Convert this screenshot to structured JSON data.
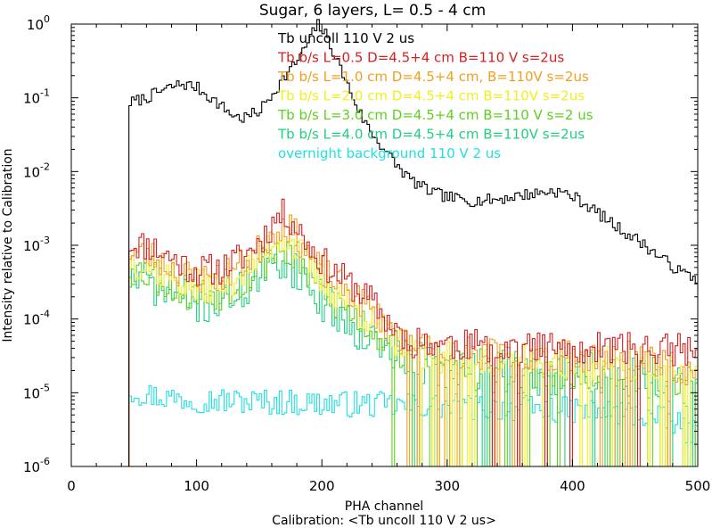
{
  "chart_data": {
    "type": "line",
    "title": "Sugar, 6 layers, L= 0.5 - 4 cm",
    "xlabel": "PHA channel",
    "ylabel": "Intensity relative to Calibration",
    "footer": "Calibration: <Tb uncoll 110 V 2 us>",
    "xlim": [
      0,
      500
    ],
    "ylim": [
      1e-06,
      1
    ],
    "yscale": "log",
    "x_ticks": [
      "0",
      "100",
      "200",
      "300",
      "400",
      "500"
    ],
    "y_ticks": [
      {
        "base": "10",
        "exp": "0",
        "value": 1
      },
      {
        "base": "10",
        "exp": "-1",
        "value": 0.1
      },
      {
        "base": "10",
        "exp": "-2",
        "value": 0.01
      },
      {
        "base": "10",
        "exp": "-3",
        "value": 0.001
      },
      {
        "base": "10",
        "exp": "-4",
        "value": 0.0001
      },
      {
        "base": "10",
        "exp": "-5",
        "value": 1e-05
      },
      {
        "base": "10",
        "exp": "-6",
        "value": 1e-06
      }
    ],
    "series": [
      {
        "name": "Tb uncoll 110 V 2 us",
        "color": "#000000",
        "kind": "peaks",
        "start": 46,
        "base": 1e-06,
        "noise": 0.08,
        "points": [
          [
            46,
            0.085
          ],
          [
            60,
            0.1
          ],
          [
            75,
            0.13
          ],
          [
            88,
            0.155
          ],
          [
            100,
            0.14
          ],
          [
            115,
            0.09
          ],
          [
            128,
            0.06
          ],
          [
            136,
            0.052
          ],
          [
            150,
            0.065
          ],
          [
            160,
            0.11
          ],
          [
            170,
            0.19
          ],
          [
            178,
            0.28
          ],
          [
            185,
            0.42
          ],
          [
            192,
            0.7
          ],
          [
            197,
            1.0
          ],
          [
            203,
            0.72
          ],
          [
            210,
            0.4
          ],
          [
            218,
            0.19
          ],
          [
            225,
            0.1
          ],
          [
            232,
            0.055
          ],
          [
            242,
            0.03
          ],
          [
            252,
            0.018
          ],
          [
            262,
            0.011
          ],
          [
            272,
            0.0075
          ],
          [
            285,
            0.0055
          ],
          [
            300,
            0.0045
          ],
          [
            320,
            0.004
          ],
          [
            340,
            0.0042
          ],
          [
            360,
            0.0048
          ],
          [
            375,
            0.0052
          ],
          [
            385,
            0.0055
          ],
          [
            395,
            0.005
          ],
          [
            405,
            0.0042
          ],
          [
            415,
            0.0032
          ],
          [
            425,
            0.0024
          ],
          [
            435,
            0.0018
          ],
          [
            445,
            0.0014
          ],
          [
            455,
            0.0011
          ],
          [
            465,
            0.0008
          ],
          [
            475,
            0.0006
          ],
          [
            485,
            0.00045
          ],
          [
            495,
            0.00038
          ],
          [
            500,
            0.00033
          ]
        ]
      },
      {
        "name": "Tb b/s L=0.5 D=4.5+4 cm B=110 V s=2us",
        "color": "#d62020",
        "kind": "noisy",
        "start": 46,
        "base": 1e-06,
        "noise": 0.22,
        "seed": 11,
        "drop_frac": 0.05,
        "points": [
          [
            46,
            0.0011
          ],
          [
            65,
            0.00095
          ],
          [
            85,
            0.0006
          ],
          [
            100,
            0.00045
          ],
          [
            120,
            0.00048
          ],
          [
            140,
            0.00075
          ],
          [
            155,
            0.0014
          ],
          [
            165,
            0.0025
          ],
          [
            172,
            0.0026
          ],
          [
            182,
            0.0016
          ],
          [
            195,
            0.00075
          ],
          [
            210,
            0.00042
          ],
          [
            225,
            0.00028
          ],
          [
            240,
            0.00017
          ],
          [
            255,
            8.5e-05
          ],
          [
            270,
            5e-05
          ],
          [
            300,
            4.5e-05
          ],
          [
            350,
            4.2e-05
          ],
          [
            400,
            4e-05
          ],
          [
            450,
            4e-05
          ],
          [
            495,
            3.8e-05
          ]
        ]
      },
      {
        "name": "Tb b/s L=1.0 cm D=4.5+4 cm, B=110V s=2us",
        "color": "#f0a020",
        "kind": "noisy",
        "start": 46,
        "base": 1e-06,
        "noise": 0.22,
        "seed": 23,
        "drop_frac": 0.08,
        "points": [
          [
            46,
            0.00085
          ],
          [
            65,
            0.0007
          ],
          [
            85,
            0.00045
          ],
          [
            100,
            0.00035
          ],
          [
            120,
            0.00038
          ],
          [
            140,
            0.0006
          ],
          [
            155,
            0.0011
          ],
          [
            165,
            0.0018
          ],
          [
            172,
            0.0019
          ],
          [
            182,
            0.0012
          ],
          [
            195,
            0.00055
          ],
          [
            210,
            0.00032
          ],
          [
            225,
            0.00021
          ],
          [
            240,
            0.00013
          ],
          [
            255,
            7e-05
          ],
          [
            270,
            4.2e-05
          ],
          [
            300,
            3.5e-05
          ],
          [
            350,
            3.3e-05
          ],
          [
            400,
            3.2e-05
          ],
          [
            450,
            3e-05
          ],
          [
            495,
            2e-05
          ]
        ]
      },
      {
        "name": "Tb b/s L=2.0 cm D=4.5+4 cm B=110V s=2us",
        "color": "#f0f020",
        "kind": "noisy",
        "start": 46,
        "base": 1e-06,
        "noise": 0.24,
        "seed": 37,
        "drop_frac": 0.12,
        "points": [
          [
            46,
            0.00065
          ],
          [
            65,
            0.00052
          ],
          [
            85,
            0.00034
          ],
          [
            100,
            0.00027
          ],
          [
            120,
            0.0003
          ],
          [
            140,
            0.00046
          ],
          [
            155,
            0.00085
          ],
          [
            165,
            0.0013
          ],
          [
            172,
            0.0013
          ],
          [
            182,
            0.00085
          ],
          [
            195,
            0.0004
          ],
          [
            210,
            0.00024
          ],
          [
            225,
            0.00015
          ],
          [
            240,
            0.0001
          ],
          [
            255,
            6e-05
          ],
          [
            270,
            3.8e-05
          ],
          [
            300,
            3e-05
          ],
          [
            350,
            2.8e-05
          ],
          [
            400,
            2.6e-05
          ],
          [
            450,
            2.4e-05
          ],
          [
            495,
            1.5e-05
          ]
        ]
      },
      {
        "name": "Tb b/s L=3.0 cm D=4.5+4 cm B=110 V s=2 us",
        "color": "#60d020",
        "kind": "noisy",
        "start": 46,
        "base": 1e-06,
        "noise": 0.26,
        "seed": 53,
        "drop_frac": 0.18,
        "points": [
          [
            46,
            0.0005
          ],
          [
            65,
            0.0004
          ],
          [
            85,
            0.00026
          ],
          [
            100,
            0.00021
          ],
          [
            120,
            0.00024
          ],
          [
            140,
            0.00036
          ],
          [
            155,
            0.00062
          ],
          [
            165,
            0.00085
          ],
          [
            172,
            0.0009
          ],
          [
            182,
            0.00062
          ],
          [
            195,
            0.0003
          ],
          [
            210,
            0.00018
          ],
          [
            225,
            0.00011
          ],
          [
            240,
            7.5e-05
          ],
          [
            255,
            4.5e-05
          ],
          [
            270,
            3e-05
          ],
          [
            300,
            2.6e-05
          ],
          [
            350,
            2.2e-05
          ],
          [
            400,
            2e-05
          ],
          [
            450,
            2e-05
          ],
          [
            495,
            1.4e-05
          ]
        ]
      },
      {
        "name": "Tb b/s L=4.0 cm D=4.5+4 cm B=110V s=2us",
        "color": "#20d080",
        "kind": "noisy",
        "start": 46,
        "base": 1e-06,
        "noise": 0.28,
        "seed": 71,
        "drop_frac": 0.22,
        "points": [
          [
            46,
            0.00037
          ],
          [
            65,
            0.0003
          ],
          [
            85,
            0.0002
          ],
          [
            100,
            0.00016
          ],
          [
            120,
            0.00018
          ],
          [
            140,
            0.00026
          ],
          [
            155,
            0.00042
          ],
          [
            165,
            0.0006
          ],
          [
            172,
            0.0006
          ],
          [
            182,
            0.00042
          ],
          [
            195,
            0.00021
          ],
          [
            210,
            0.00013
          ],
          [
            225,
            8e-05
          ],
          [
            240,
            5.5e-05
          ],
          [
            255,
            3.5e-05
          ],
          [
            270,
            2.5e-05
          ],
          [
            300,
            2e-05
          ],
          [
            350,
            1.8e-05
          ],
          [
            400,
            1.7e-05
          ],
          [
            450,
            1.6e-05
          ],
          [
            495,
            1.2e-05
          ]
        ]
      },
      {
        "name": "overnight background 110 V 2 us",
        "color": "#20e0e0",
        "kind": "noisy",
        "start": 46,
        "base": 1e-06,
        "noise": 0.18,
        "seed": 97,
        "drop_frac": 0.0,
        "points": [
          [
            46,
            1.1e-05
          ],
          [
            60,
            9.5e-06
          ],
          [
            80,
            8.5e-06
          ],
          [
            120,
            7.8e-06
          ],
          [
            160,
            7.5e-06
          ],
          [
            200,
            7.2e-06
          ],
          [
            250,
            6.8e-06
          ],
          [
            300,
            6.5e-06
          ],
          [
            350,
            6.2e-06
          ],
          [
            400,
            5.8e-06
          ],
          [
            450,
            5.2e-06
          ],
          [
            480,
            4e-06
          ],
          [
            495,
            2.8e-06
          ]
        ]
      }
    ]
  }
}
